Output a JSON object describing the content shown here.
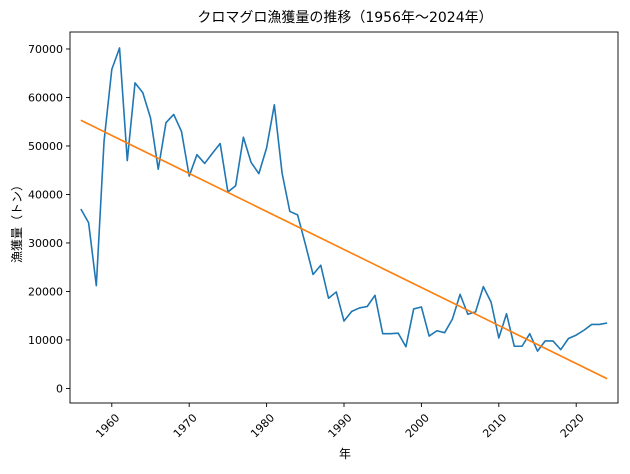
{
  "chart_data": {
    "type": "line",
    "title": "クロマグロ漁獲量の推移（1956年〜2024年）",
    "xlabel": "年",
    "ylabel": "漁獲量（トン）",
    "xlim": [
      1954.6,
      2025.4
    ],
    "ylim": [
      -3000,
      73500
    ],
    "x_ticks": [
      1960,
      1970,
      1980,
      1990,
      2000,
      2010,
      2020
    ],
    "y_ticks": [
      0,
      10000,
      20000,
      30000,
      40000,
      50000,
      60000,
      70000
    ],
    "x_tick_rotation": 45,
    "grid": false,
    "legend": "none",
    "series": [
      {
        "color": "#1f77b4",
        "points": [
          [
            1956,
            37000
          ],
          [
            1957,
            34200
          ],
          [
            1958,
            21200
          ],
          [
            1959,
            51000
          ],
          [
            1960,
            65800
          ],
          [
            1961,
            70200
          ],
          [
            1962,
            47000
          ],
          [
            1963,
            63000
          ],
          [
            1964,
            61000
          ],
          [
            1965,
            55800
          ],
          [
            1966,
            45200
          ],
          [
            1967,
            54800
          ],
          [
            1968,
            56500
          ],
          [
            1969,
            53000
          ],
          [
            1970,
            43800
          ],
          [
            1971,
            48200
          ],
          [
            1972,
            46400
          ],
          [
            1973,
            48500
          ],
          [
            1974,
            50500
          ],
          [
            1975,
            40500
          ],
          [
            1976,
            41800
          ],
          [
            1977,
            51800
          ],
          [
            1978,
            46600
          ],
          [
            1979,
            44300
          ],
          [
            1980,
            49600
          ],
          [
            1981,
            58500
          ],
          [
            1982,
            44400
          ],
          [
            1983,
            36500
          ],
          [
            1984,
            35800
          ],
          [
            1985,
            29800
          ],
          [
            1986,
            23500
          ],
          [
            1987,
            25400
          ],
          [
            1988,
            18600
          ],
          [
            1989,
            19900
          ],
          [
            1990,
            13900
          ],
          [
            1991,
            15900
          ],
          [
            1992,
            16600
          ],
          [
            1993,
            16900
          ],
          [
            1994,
            19200
          ],
          [
            1995,
            11300
          ],
          [
            1996,
            11300
          ],
          [
            1997,
            11400
          ],
          [
            1998,
            8600
          ],
          [
            1999,
            16400
          ],
          [
            2000,
            16800
          ],
          [
            2001,
            10800
          ],
          [
            2002,
            11900
          ],
          [
            2003,
            11500
          ],
          [
            2004,
            14300
          ],
          [
            2005,
            19400
          ],
          [
            2006,
            15300
          ],
          [
            2007,
            15800
          ],
          [
            2008,
            21000
          ],
          [
            2009,
            17800
          ],
          [
            2010,
            10400
          ],
          [
            2011,
            15400
          ],
          [
            2012,
            8700
          ],
          [
            2013,
            8700
          ],
          [
            2014,
            11300
          ],
          [
            2015,
            7700
          ],
          [
            2016,
            9800
          ],
          [
            2017,
            9800
          ],
          [
            2018,
            8000
          ],
          [
            2019,
            10300
          ],
          [
            2020,
            11000
          ],
          [
            2021,
            12000
          ],
          [
            2022,
            13200
          ],
          [
            2023,
            13200
          ],
          [
            2024,
            13500
          ]
        ]
      },
      {
        "color": "#ff7f0e",
        "points": [
          [
            1956,
            55300
          ],
          [
            2024,
            2000
          ]
        ]
      }
    ]
  }
}
